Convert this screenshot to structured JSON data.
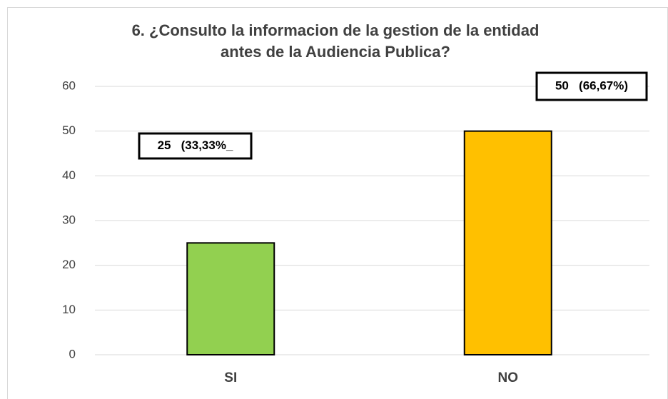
{
  "chart_data": {
    "type": "bar",
    "title": "6. ¿Consulto la informacion de la gestion de la entidad antes de la Audiencia Publica?",
    "categories": [
      "SI",
      "NO"
    ],
    "values": [
      25,
      50
    ],
    "value_labels": [
      "25   (33,33%_",
      "50   (66,67%)"
    ],
    "colors": [
      "#92d050",
      "#ffc000"
    ],
    "ylim": [
      0,
      60
    ],
    "yticks": [
      0,
      10,
      20,
      30,
      40,
      50,
      60
    ],
    "grid": true
  }
}
